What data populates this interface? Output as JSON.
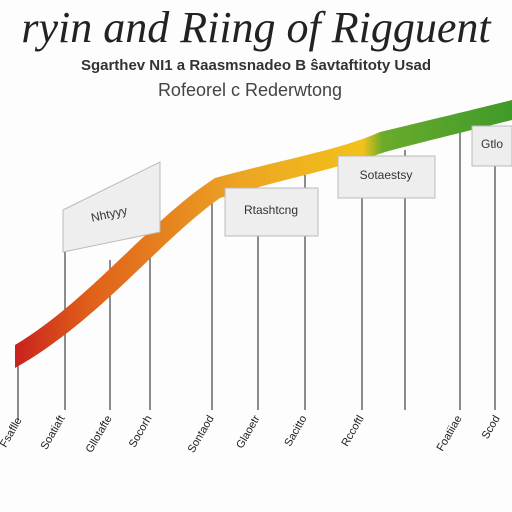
{
  "header": {
    "title": "ryin and Riing of Rigguent",
    "subtitle": "Sgarthev NI1 a Raasmsnadeo B ŝavtaftitoty Usad",
    "caption": "Rofeorel c Rederwtong"
  },
  "callouts": [
    "Nhtyyy",
    "Rtashtcng",
    "Sotaestsy",
    "Gtlo"
  ],
  "axis_labels": [
    "Fsaflle",
    "Soatiaft",
    "Gllotafte",
    "Socorh",
    "Sontaod",
    "Glaoetr",
    "Sacitto",
    "Rccoftl",
    "Foatiiae",
    "Scod"
  ]
}
